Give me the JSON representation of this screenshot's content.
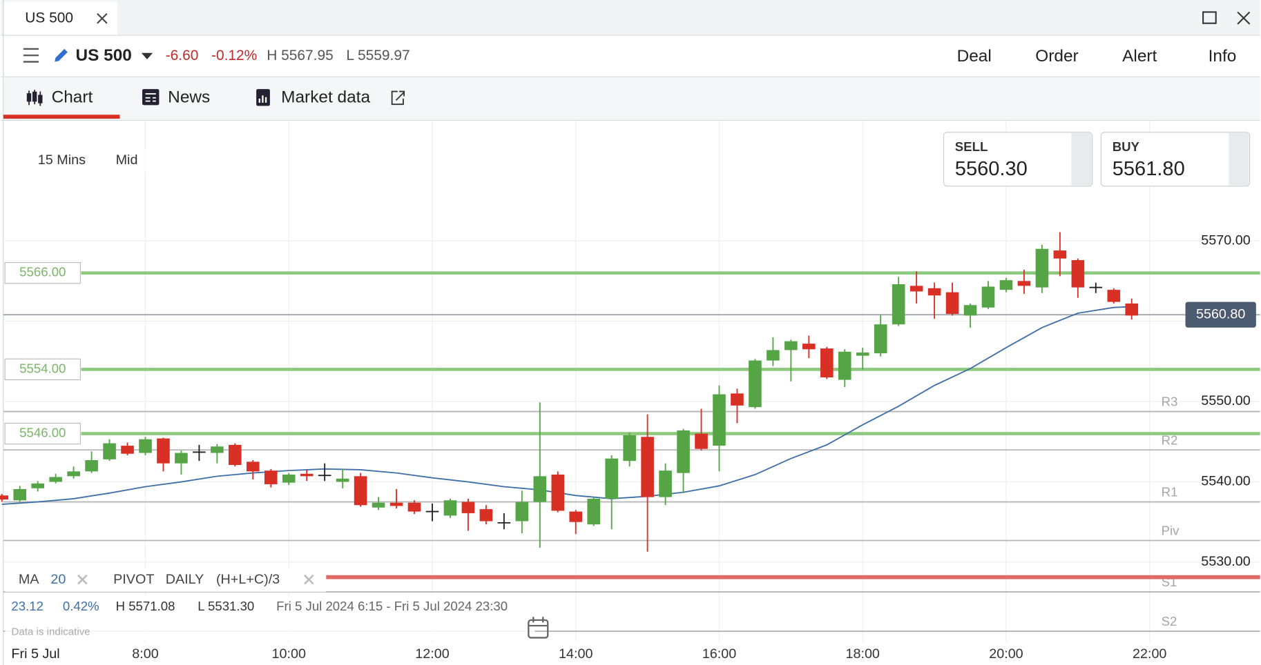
{
  "tab": {
    "title": "US 500"
  },
  "header": {
    "instrument": "US 500",
    "change": "-6.60",
    "change_pct": "-0.12%",
    "high": "H 5567.95",
    "low": "L 5559.97",
    "actions": [
      "Deal",
      "Order",
      "Alert",
      "Info"
    ]
  },
  "nav": {
    "tabs": [
      "Chart",
      "News",
      "Market data"
    ]
  },
  "controls": {
    "timeframe": "15 Mins",
    "price_type": "Mid"
  },
  "quotes": {
    "sell": {
      "label": "SELL",
      "price": "5560.30"
    },
    "buy": {
      "label": "BUY",
      "price": "5561.80"
    }
  },
  "stats": {
    "change": "23.12",
    "change_pct": "0.42%",
    "high": "H 5571.08",
    "low": "L 5531.30",
    "range": "Fri 5 Jul 2024 6:15 - Fri 5 Jul 2024 23:30",
    "note": "Data is indicative"
  },
  "chart_data": {
    "type": "candlestick",
    "x": [
      6,
      6.25,
      6.5,
      6.75,
      7,
      7.25,
      7.5,
      7.75,
      8,
      8.25,
      8.5,
      8.75,
      9,
      9.25,
      9.5,
      9.75,
      10,
      10.25,
      10.5,
      10.75,
      11,
      11.25,
      11.5,
      11.75,
      12,
      12.25,
      12.5,
      12.75,
      13,
      13.25,
      13.5,
      13.75,
      14,
      14.25,
      14.5,
      14.75,
      15,
      15.25,
      15.5,
      15.75,
      16,
      16.25,
      16.5,
      16.75,
      17,
      17.25,
      17.5,
      17.75,
      18,
      18.25,
      18.5,
      18.75,
      19,
      19.25,
      19.5,
      19.75,
      20,
      20.25,
      20.5,
      20.75,
      21,
      21.25,
      21.5,
      21.75
    ],
    "open": [
      5538.3,
      5537.7,
      5539.2,
      5540.0,
      5540.7,
      5541.3,
      5542.8,
      5544.5,
      5543.6,
      5545.4,
      5542.3,
      5543.7,
      5543.6,
      5544.6,
      5542.5,
      5541.4,
      5539.9,
      5541.0,
      5540.8,
      5540.0,
      5540.7,
      5536.8,
      5537.4,
      5537.4,
      5536.3,
      5535.8,
      5537.5,
      5536.6,
      5534.9,
      5535.1,
      5537.5,
      5540.9,
      5536.3,
      5534.7,
      5537.9,
      5542.6,
      5545.6,
      5538.1,
      5541.1,
      5546.0,
      5544.5,
      5551.0,
      5549.3,
      5555.1,
      5556.4,
      5557.2,
      5556.6,
      5552.7,
      5555.7,
      5556.0,
      5559.6,
      5564.4,
      5564.1,
      5563.6,
      5560.7,
      5561.7,
      5563.9,
      5565.0,
      5564.2,
      5568.8,
      5567.6,
      5564.2,
      5563.9,
      5562.2
    ],
    "high": [
      5538.5,
      5539.5,
      5540.1,
      5541.0,
      5541.9,
      5543.8,
      5545.3,
      5544.9,
      5545.6,
      5545.5,
      5543.9,
      5544.6,
      5544.7,
      5544.8,
      5542.7,
      5541.6,
      5541.1,
      5541.5,
      5542.3,
      5541.6,
      5541.1,
      5538.1,
      5539.1,
      5537.7,
      5537.3,
      5537.9,
      5537.9,
      5537.1,
      5536.1,
      5538.9,
      5549.9,
      5541.3,
      5536.5,
      5538.1,
      5543.3,
      5546.1,
      5548.4,
      5542.3,
      5546.6,
      5549.1,
      5552.0,
      5551.6,
      5555.3,
      5558.0,
      5557.7,
      5558.2,
      5556.8,
      5556.5,
      5556.7,
      5560.8,
      5565.5,
      5566.2,
      5564.8,
      5564.8,
      5562.2,
      5565.0,
      5565.4,
      5566.4,
      5569.5,
      5571.08,
      5567.8,
      5564.8,
      5564.1,
      5562.8
    ],
    "low": [
      5537.5,
      5537.5,
      5538.8,
      5539.8,
      5540.4,
      5541.1,
      5542.6,
      5543.3,
      5543.3,
      5541.3,
      5540.9,
      5542.6,
      5542.3,
      5541.9,
      5540.3,
      5539.3,
      5539.6,
      5540.1,
      5540.1,
      5539.2,
      5536.9,
      5536.5,
      5536.7,
      5536.0,
      5535.1,
      5535.5,
      5533.9,
      5534.7,
      5534.1,
      5533.6,
      5531.8,
      5536.2,
      5533.5,
      5534.5,
      5534.1,
      5541.9,
      5531.3,
      5537.1,
      5538.6,
      5543.9,
      5541.3,
      5547.3,
      5549.1,
      5554.4,
      5552.5,
      5555.4,
      5552.8,
      5551.8,
      5554.0,
      5555.6,
      5559.4,
      5562.2,
      5560.3,
      5560.7,
      5559.2,
      5561.5,
      5563.6,
      5563.4,
      5563.5,
      5565.6,
      5562.9,
      5563.5,
      5562.2,
      5560.2
    ],
    "close": [
      5537.8,
      5539.1,
      5539.8,
      5540.6,
      5541.3,
      5542.7,
      5544.8,
      5543.5,
      5545.3,
      5542.3,
      5543.6,
      5543.7,
      5544.4,
      5542.1,
      5541.3,
      5539.7,
      5540.9,
      5540.7,
      5540.8,
      5540.4,
      5537.1,
      5537.4,
      5537.0,
      5536.3,
      5536.3,
      5537.7,
      5536.1,
      5535.1,
      5534.9,
      5537.5,
      5540.7,
      5536.4,
      5535.0,
      5537.9,
      5542.9,
      5545.8,
      5538.1,
      5541.4,
      5546.4,
      5544.1,
      5550.9,
      5549.5,
      5555.1,
      5556.4,
      5557.5,
      5556.5,
      5553.0,
      5556.2,
      5556.1,
      5559.6,
      5564.6,
      5563.7,
      5563.2,
      5560.9,
      5562.0,
      5564.3,
      5565.1,
      5564.4,
      5569.0,
      5567.8,
      5564.2,
      5564.2,
      5562.4,
      5560.7
    ],
    "up_color": "#55a546",
    "down_color": "#d93025",
    "flat_color": "#222222",
    "xlim": [
      6.02,
      23.54
    ],
    "xticks": [
      {
        "value": 8,
        "label": "8:00"
      },
      {
        "value": 10,
        "label": "10:00"
      },
      {
        "value": 12,
        "label": "12:00"
      },
      {
        "value": 14,
        "label": "14:00"
      },
      {
        "value": 16,
        "label": "16:00"
      },
      {
        "value": 18,
        "label": "18:00"
      },
      {
        "value": 20,
        "label": "20:00"
      },
      {
        "value": 22,
        "label": "22:00"
      }
    ],
    "date_label": "Fri 5 Jul",
    "ylim": [
      5517.2,
      5585
    ],
    "yticks": [
      {
        "value": 5530,
        "label": "5530.00"
      },
      {
        "value": 5540,
        "label": "5540.00"
      },
      {
        "value": 5550,
        "label": "5550.00"
      },
      {
        "value": 5560,
        "label": "5560.00"
      },
      {
        "value": 5570,
        "label": "5570.00"
      }
    ],
    "grid": true,
    "last": {
      "value": 5560.8,
      "label": "5560.80"
    },
    "levels": {
      "values": [
        5566,
        5554,
        5546
      ],
      "value_labels": [
        "5566.00",
        "5554.00",
        "5546.00"
      ],
      "color": "#8cc97c"
    },
    "indicators": [
      {
        "name": "MA",
        "param": "20",
        "color": "#3d6fa8",
        "x": [
          6,
          6.5,
          7,
          7.5,
          8,
          8.5,
          9,
          9.5,
          10,
          10.5,
          11,
          11.5,
          12,
          12.5,
          13,
          13.5,
          14,
          14.5,
          15,
          15.5,
          16,
          16.5,
          17,
          17.5,
          18,
          18.5,
          19,
          19.5,
          20,
          20.5,
          21,
          21.5,
          21.75
        ],
        "values": [
          5537.2,
          5537.5,
          5537.9,
          5538.6,
          5539.4,
          5540.0,
          5540.7,
          5541.1,
          5541.4,
          5541.6,
          5541.5,
          5541.1,
          5540.5,
          5540.0,
          5539.4,
          5539.0,
          5538.3,
          5537.9,
          5538.2,
          5538.7,
          5539.5,
          5540.9,
          5542.9,
          5544.6,
          5547.1,
          5549.4,
          5552.0,
          5554.1,
          5556.7,
          5559.2,
          5561.0,
          5561.7,
          5561.8
        ]
      },
      {
        "name": "PIVOT",
        "param": "DAILY",
        "formula": "(H+L+C)/3",
        "color": "#b5b5b5",
        "levels": [
          {
            "label": "R3",
            "value": 5548.75
          },
          {
            "label": "R2",
            "value": 5543.97
          },
          {
            "label": "R1",
            "value": 5537.5
          },
          {
            "label": "Piv",
            "value": 5532.7
          },
          {
            "label": "S1",
            "value": 5526.3
          },
          {
            "label": "S2",
            "value": 5521.4
          }
        ]
      }
    ]
  }
}
